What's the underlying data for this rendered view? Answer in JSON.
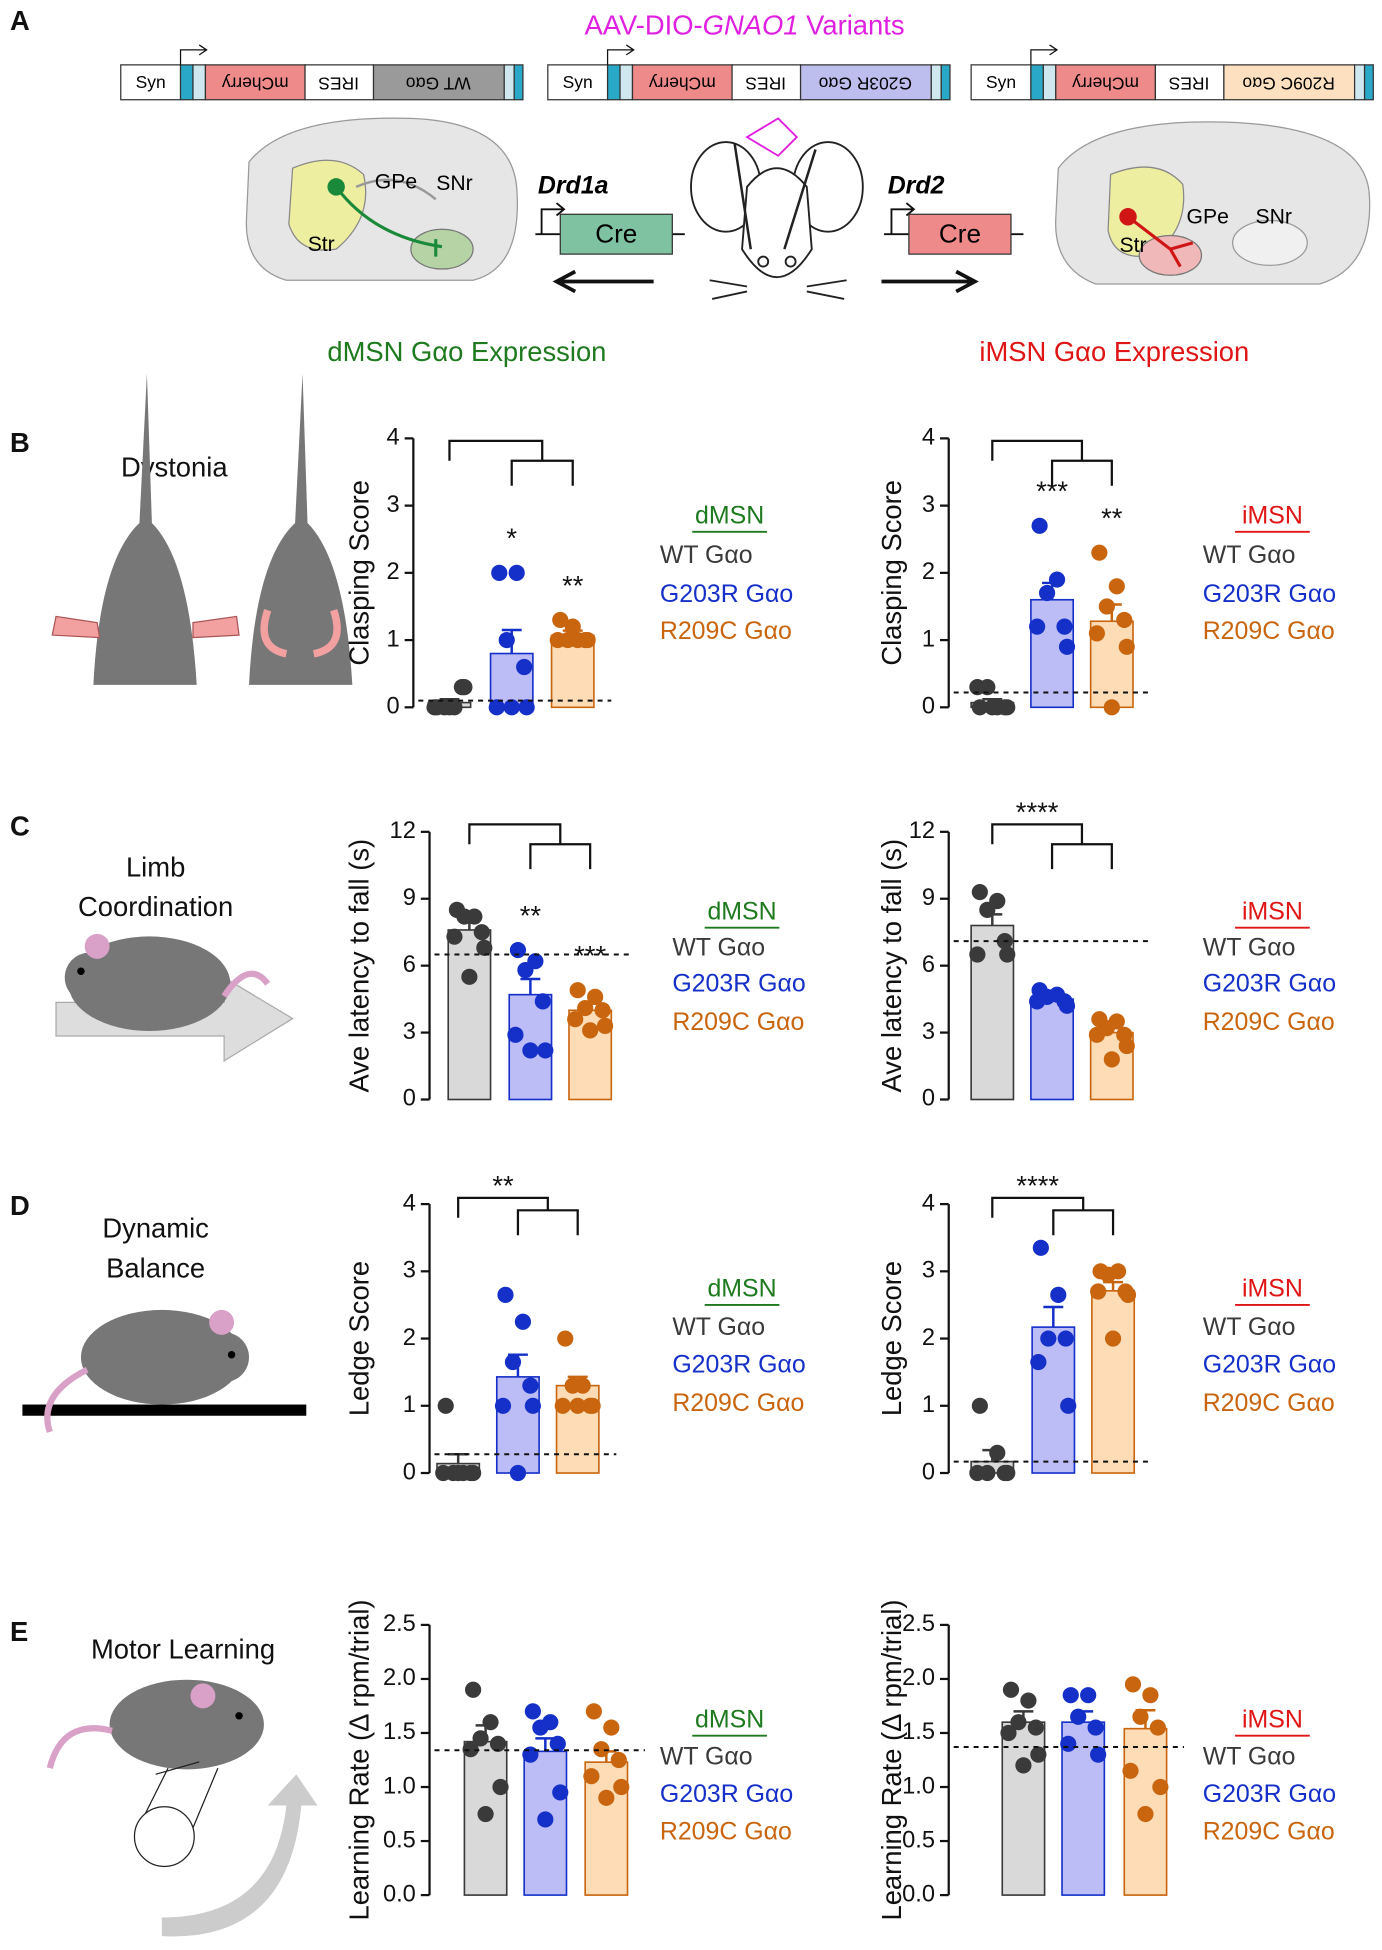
{
  "figure": {
    "panel_labels": [
      "A",
      "B",
      "C",
      "D",
      "E"
    ],
    "vector": [
      "AAV-DIO-",
      "GNAO1",
      " Variants"
    ],
    "constructs": [
      {
        "promoter": "Syn",
        "reporter": "mCherry",
        "linker": "IRES",
        "gene": "WT Gαo"
      },
      {
        "promoter": "Syn",
        "reporter": "mCherry",
        "linker": "IRES",
        "gene": "G203R Gαo"
      },
      {
        "promoter": "Syn",
        "reporter": "mCherry",
        "linker": "IRES",
        "gene": "R209C Gαo"
      }
    ],
    "drivers": [
      {
        "gene": "Drd1a",
        "recombinase": "Cre"
      },
      {
        "gene": "Drd2",
        "recombinase": "Cre"
      }
    ],
    "regions_left": [
      "Str",
      "GPe",
      "SNr"
    ],
    "regions_right": [
      "Str",
      "GPe",
      "SNr"
    ],
    "expression": [
      "dMSN Gαo Expression",
      "iMSN Gαo Expression"
    ],
    "tests": [
      [
        "Dystonia"
      ],
      [
        "Limb",
        "Coordination"
      ],
      [
        "Dynamic",
        "Balance"
      ],
      [
        "Motor Learning"
      ]
    ]
  },
  "chart_data": [
    {
      "type": "bar",
      "ylabel": "Clasping Score",
      "ylim": [
        0,
        4
      ],
      "yticks": [
        0,
        1,
        2,
        3,
        4
      ],
      "legend_title": "dMSN",
      "legend_color": "#1f7a1f",
      "reference_line": 0.1,
      "series": [
        {
          "name": "WT Gαo",
          "color": "#3a3a3a",
          "fill": "#d9d9d9",
          "value": 0.07,
          "error": 0.05,
          "points": [
            0,
            0,
            0,
            0.3,
            0,
            0.3,
            0
          ]
        },
        {
          "name": "G203R Gαo",
          "color": "#1530c8",
          "fill": "#bcbcf6",
          "value": 0.8,
          "error": 0.35,
          "points": [
            2,
            2,
            1,
            0.6,
            0,
            0,
            0
          ],
          "significance": "*"
        },
        {
          "name": "R209C Gαo",
          "color": "#c9650f",
          "fill": "#fddcb6",
          "value": 1.07,
          "error": 0.07,
          "points": [
            1.3,
            1,
            1,
            1,
            1,
            1,
            1.2
          ],
          "significance": "**"
        }
      ]
    },
    {
      "type": "bar",
      "ylabel": "Clasping Score",
      "ylim": [
        0,
        4
      ],
      "yticks": [
        0,
        1,
        2,
        3,
        4
      ],
      "legend_title": "iMSN",
      "legend_color": "#e01515",
      "reference_line": 0.22,
      "series": [
        {
          "name": "WT Gαo",
          "color": "#3a3a3a",
          "fill": "#d9d9d9",
          "value": 0.07,
          "error": 0.05,
          "points": [
            0,
            0,
            0.3,
            0,
            0.3,
            0,
            0
          ]
        },
        {
          "name": "G203R Gαo",
          "color": "#1530c8",
          "fill": "#bcbcf6",
          "value": 1.6,
          "error": 0.25,
          "points": [
            2.7,
            1.9,
            1.7,
            1.2,
            1.2,
            0.9
          ],
          "significance": "***"
        },
        {
          "name": "R209C Gαo",
          "color": "#c9650f",
          "fill": "#fddcb6",
          "value": 1.28,
          "error": 0.25,
          "points": [
            2.3,
            1.8,
            1.5,
            1.3,
            1.1,
            0.9,
            0
          ],
          "significance": "**"
        }
      ]
    },
    {
      "type": "bar",
      "ylabel": "Ave latency to fall (s)",
      "ylim": [
        0,
        12
      ],
      "yticks": [
        0,
        3,
        6,
        9,
        12
      ],
      "legend_title": "dMSN",
      "legend_color": "#1f7a1f",
      "reference_line": 6.5,
      "series": [
        {
          "name": "WT Gαo",
          "color": "#3a3a3a",
          "fill": "#d9d9d9",
          "value": 7.6,
          "error": 0.4,
          "points": [
            8.5,
            8.2,
            8.2,
            7.5,
            7.3,
            6.8,
            5.5
          ]
        },
        {
          "name": "G203R Gαo",
          "color": "#1530c8",
          "fill": "#bcbcf6",
          "value": 4.7,
          "error": 0.7,
          "points": [
            6.7,
            6.2,
            5.8,
            4.4,
            2.9,
            2.2,
            2.2
          ],
          "significance": "**"
        },
        {
          "name": "R209C Gαo",
          "color": "#c9650f",
          "fill": "#fddcb6",
          "value": 4.0,
          "error": 0.3,
          "points": [
            4.9,
            4.6,
            4.1,
            4.0,
            3.6,
            3.3,
            3.1
          ],
          "significance": "***"
        }
      ]
    },
    {
      "type": "bar",
      "ylabel": "Ave latency to fall (s)",
      "ylim": [
        0,
        12
      ],
      "yticks": [
        0,
        3,
        6,
        9,
        12
      ],
      "legend_title": "iMSN",
      "legend_color": "#e01515",
      "reference_line": 7.1,
      "bracket_label": "****",
      "series": [
        {
          "name": "WT Gαo",
          "color": "#3a3a3a",
          "fill": "#d9d9d9",
          "value": 7.8,
          "error": 0.5,
          "points": [
            9.3,
            8.9,
            8.5,
            7.1,
            6.5,
            6.5
          ]
        },
        {
          "name": "G203R Gαo",
          "color": "#1530c8",
          "fill": "#bcbcf6",
          "value": 4.5,
          "error": 0.15,
          "points": [
            4.9,
            4.7,
            4.6,
            4.4,
            4.4,
            4.2
          ]
        },
        {
          "name": "R209C Gαo",
          "color": "#c9650f",
          "fill": "#fddcb6",
          "value": 3.0,
          "error": 0.3,
          "points": [
            3.6,
            3.5,
            3.2,
            2.9,
            2.9,
            2.4,
            1.8
          ]
        }
      ]
    },
    {
      "type": "bar",
      "ylabel": "Ledge Score",
      "ylim": [
        0,
        4
      ],
      "yticks": [
        0,
        1,
        2,
        3,
        4
      ],
      "legend_title": "dMSN",
      "legend_color": "#1f7a1f",
      "reference_line": 0.28,
      "bracket_label": "**",
      "series": [
        {
          "name": "WT Gαo",
          "color": "#3a3a3a",
          "fill": "#d9d9d9",
          "value": 0.14,
          "error": 0.14,
          "points": [
            1,
            0,
            0,
            0,
            0,
            0,
            0
          ]
        },
        {
          "name": "G203R Gαo",
          "color": "#1530c8",
          "fill": "#bcbcf6",
          "value": 1.43,
          "error": 0.33,
          "points": [
            2.65,
            2.25,
            1.65,
            1.3,
            1.0,
            1.0,
            0
          ]
        },
        {
          "name": "R209C Gαo",
          "color": "#c9650f",
          "fill": "#fddcb6",
          "value": 1.3,
          "error": 0.13,
          "points": [
            2.0,
            1.3,
            1.3,
            1.0,
            1.0,
            1.0,
            1.0
          ]
        }
      ]
    },
    {
      "type": "bar",
      "ylabel": "Ledge Score",
      "ylim": [
        0,
        4
      ],
      "yticks": [
        0,
        1,
        2,
        3,
        4
      ],
      "legend_title": "iMSN",
      "legend_color": "#e01515",
      "reference_line": 0.17,
      "bracket_label": "****",
      "series": [
        {
          "name": "WT Gαo",
          "color": "#3a3a3a",
          "fill": "#d9d9d9",
          "value": 0.17,
          "error": 0.17,
          "points": [
            1,
            0.3,
            0,
            0,
            0,
            0
          ]
        },
        {
          "name": "G203R Gαo",
          "color": "#1530c8",
          "fill": "#bcbcf6",
          "value": 2.17,
          "error": 0.3,
          "points": [
            3.35,
            2.65,
            2.0,
            2.0,
            1.65,
            1.0
          ]
        },
        {
          "name": "R209C Gαo",
          "color": "#c9650f",
          "fill": "#fddcb6",
          "value": 2.71,
          "error": 0.13,
          "points": [
            3.0,
            3.0,
            2.95,
            2.7,
            2.7,
            2.65,
            2.0
          ]
        }
      ]
    },
    {
      "type": "bar",
      "ylabel": "Learning Rate (Δ rpm/trial)",
      "ylim": [
        0,
        2.5
      ],
      "yticks": [
        {
          "value": 0,
          "label": "0.0"
        },
        0.5,
        {
          "value": 1,
          "label": "1.0"
        },
        1.5,
        {
          "value": 2,
          "label": "2.0"
        },
        2.5
      ],
      "legend_title": "dMSN",
      "legend_color": "#1f7a1f",
      "reference_line": 1.34,
      "series": [
        {
          "name": "WT Gαo",
          "color": "#3a3a3a",
          "fill": "#d9d9d9",
          "value": 1.42,
          "error": 0.15,
          "points": [
            1.9,
            1.6,
            1.45,
            1.4,
            1.35,
            1.0,
            0.75
          ]
        },
        {
          "name": "G203R Gαo",
          "color": "#1530c8",
          "fill": "#bcbcf6",
          "value": 1.33,
          "error": 0.12,
          "points": [
            1.7,
            1.6,
            1.55,
            1.4,
            1.3,
            0.95,
            0.7
          ]
        },
        {
          "name": "R209C Gαo",
          "color": "#c9650f",
          "fill": "#fddcb6",
          "value": 1.23,
          "error": 0.1,
          "points": [
            1.7,
            1.55,
            1.35,
            1.25,
            1.1,
            1.0,
            0.9
          ]
        }
      ]
    },
    {
      "type": "bar",
      "ylabel": "Learning Rate (Δ rpm/trial)",
      "ylim": [
        0,
        2.5
      ],
      "yticks": [
        {
          "value": 0,
          "label": "0.0"
        },
        0.5,
        {
          "value": 1,
          "label": "1.0"
        },
        1.5,
        {
          "value": 2,
          "label": "2.0"
        },
        2.5
      ],
      "legend_title": "iMSN",
      "legend_color": "#e01515",
      "reference_line": 1.37,
      "series": [
        {
          "name": "WT Gαo",
          "color": "#3a3a3a",
          "fill": "#d9d9d9",
          "value": 1.6,
          "error": 0.1,
          "points": [
            1.9,
            1.8,
            1.6,
            1.55,
            1.5,
            1.3,
            1.2
          ]
        },
        {
          "name": "G203R Gαo",
          "color": "#1530c8",
          "fill": "#bcbcf6",
          "value": 1.6,
          "error": 0.1,
          "points": [
            1.85,
            1.85,
            1.65,
            1.55,
            1.4,
            1.3
          ]
        },
        {
          "name": "R209C Gαo",
          "color": "#c9650f",
          "fill": "#fddcb6",
          "value": 1.54,
          "error": 0.17,
          "points": [
            1.95,
            1.85,
            1.65,
            1.55,
            1.15,
            1.0,
            0.75
          ]
        }
      ]
    }
  ]
}
